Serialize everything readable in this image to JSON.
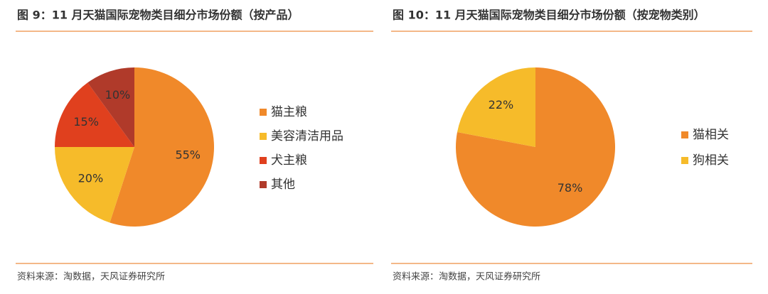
{
  "chart_data": [
    {
      "type": "pie",
      "title": "图 9：11 月天猫国际宠物类目细分市场份额（按产品）",
      "categories": [
        "猫主粮",
        "美容清洁用品",
        "犬主粮",
        "其他"
      ],
      "values": [
        55,
        20,
        15,
        10
      ],
      "value_labels": [
        "55%",
        "20%",
        "15%",
        "10%"
      ],
      "colors": [
        "#f0892a",
        "#f6bb2a",
        "#e0401e",
        "#b03a2a"
      ],
      "source": "资料来源：淘数据，天风证券研究所"
    },
    {
      "type": "pie",
      "title": "图 10：11 月天猫国际宠物类目细分市场份额（按宠物类别）",
      "categories": [
        "猫相关",
        "狗相关"
      ],
      "values": [
        78,
        22
      ],
      "value_labels": [
        "78%",
        "22%"
      ],
      "colors": [
        "#f0892a",
        "#f6bb2a"
      ],
      "source": "资料来源：淘数据，天风证券研究所"
    }
  ]
}
